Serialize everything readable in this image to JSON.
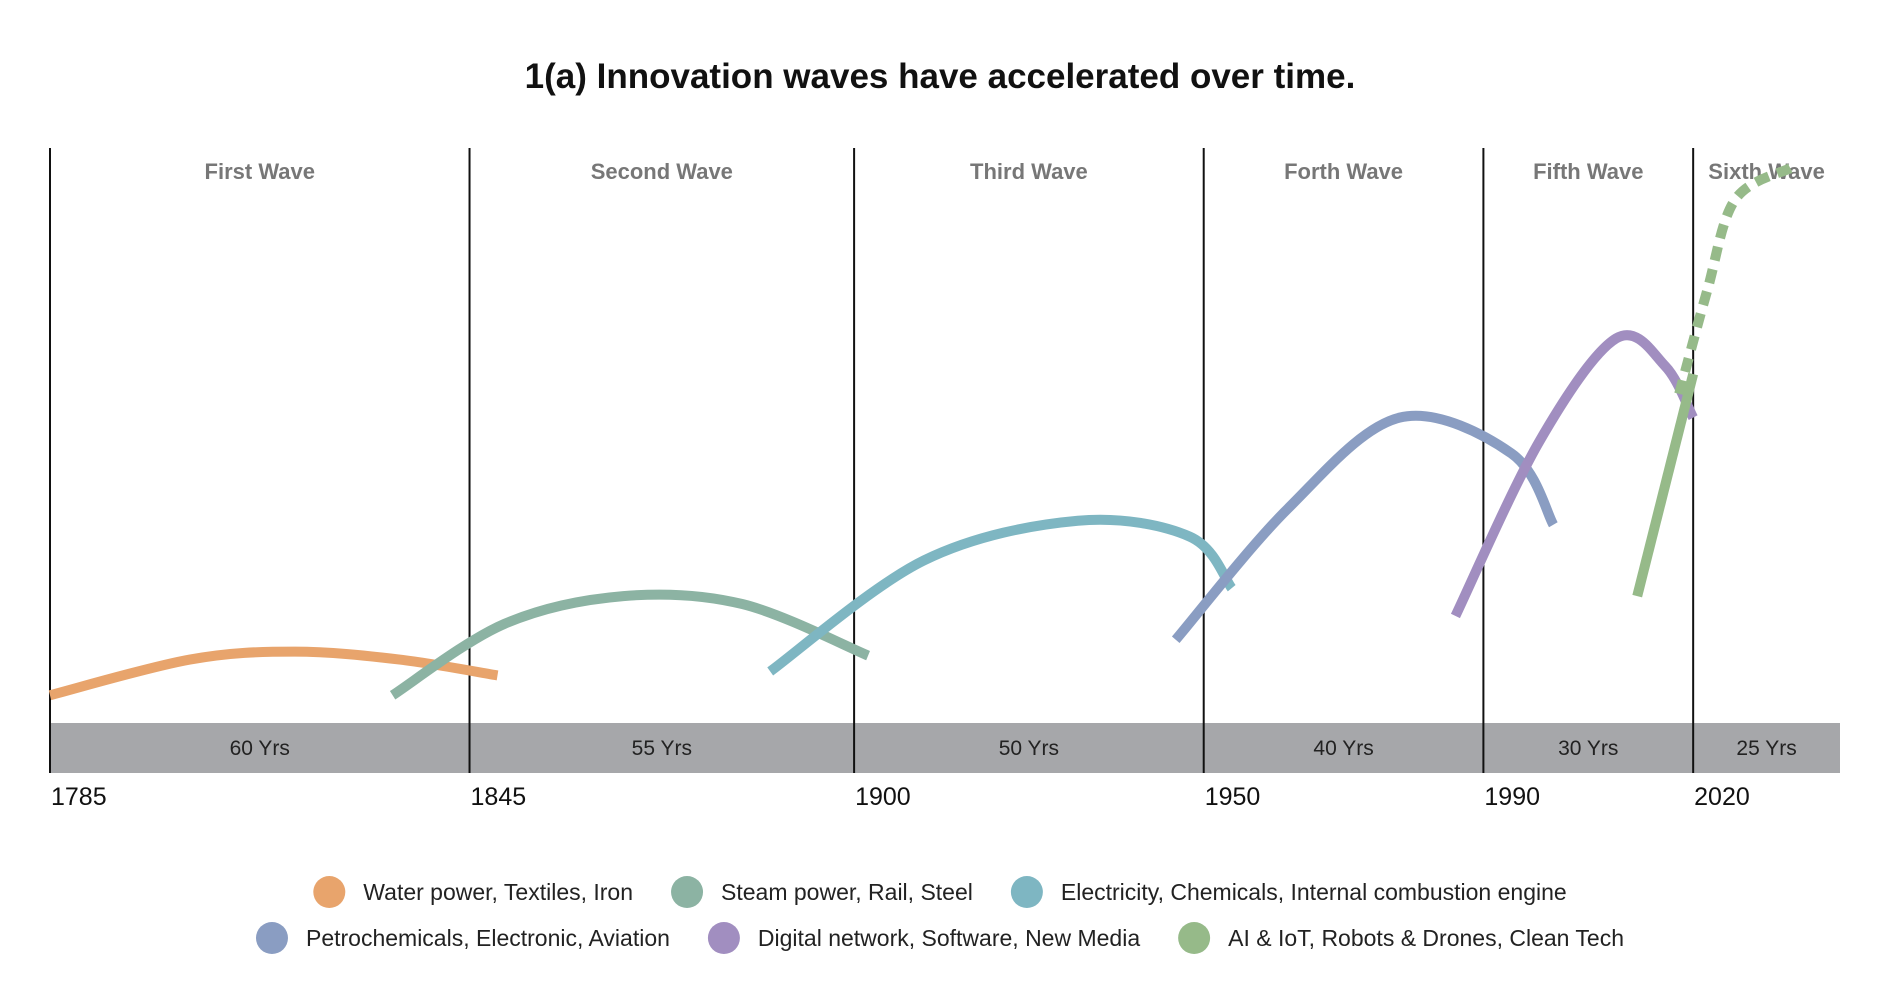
{
  "chart_data": {
    "type": "line",
    "title": "1(a) Innovation waves have accelerated over time.",
    "years": [
      "1785",
      "1845",
      "1900",
      "1950",
      "1990",
      "2020"
    ],
    "waves": [
      {
        "label": "First Wave",
        "duration": "60 Yrs"
      },
      {
        "label": "Second Wave",
        "duration": "55 Yrs"
      },
      {
        "label": "Third Wave",
        "duration": "50 Yrs"
      },
      {
        "label": "Forth Wave",
        "duration": "40 Yrs"
      },
      {
        "label": "Fifth Wave",
        "duration": "30 Yrs"
      },
      {
        "label": "Sixth Wave",
        "duration": "25 Yrs"
      }
    ],
    "series": [
      {
        "name": "Water power, Textiles, Iron",
        "color": "#E8A46C",
        "dashed": false,
        "points": [
          [
            1785,
            0.07
          ],
          [
            1805,
            0.16
          ],
          [
            1820,
            0.18
          ],
          [
            1835,
            0.16
          ],
          [
            1849,
            0.12
          ]
        ]
      },
      {
        "name": "Steam power, Rail, Steel",
        "color": "#8CB3A3",
        "dashed": false,
        "points": [
          [
            1834,
            0.07
          ],
          [
            1850,
            0.25
          ],
          [
            1867,
            0.32
          ],
          [
            1884,
            0.3
          ],
          [
            1902,
            0.17
          ]
        ]
      },
      {
        "name": "Electricity, Chemicals, Internal combustion engine",
        "color": "#7EB6C2",
        "dashed": false,
        "points": [
          [
            1888,
            0.13
          ],
          [
            1910,
            0.41
          ],
          [
            1932,
            0.51
          ],
          [
            1948,
            0.47
          ],
          [
            1954,
            0.34
          ]
        ]
      },
      {
        "name": "Petrochemicals, Electronic, Aviation",
        "color": "#8A9DC2",
        "dashed": false,
        "points": [
          [
            1946,
            0.21
          ],
          [
            1962,
            0.54
          ],
          [
            1978,
            0.77
          ],
          [
            1994,
            0.68
          ],
          [
            2000,
            0.5
          ]
        ]
      },
      {
        "name": "Digital network, Software, New Media",
        "color": "#A18EC0",
        "dashed": false,
        "points": [
          [
            1986,
            0.27
          ],
          [
            1998,
            0.71
          ],
          [
            2009,
            0.97
          ],
          [
            2016,
            0.9
          ],
          [
            2020,
            0.77
          ]
        ]
      },
      {
        "name": "AI & IoT, Robots & Drones, Clean Tech",
        "color": "#96BA89",
        "dashed": false,
        "points": [
          [
            2012,
            0.32
          ],
          [
            2020,
            0.88
          ]
        ]
      },
      {
        "name": "AI & IoT, Robots & Drones, Clean Tech (projected)",
        "color": "#96BA89",
        "dashed": true,
        "points": [
          [
            2018,
            0.83
          ],
          [
            2022,
            1.09
          ],
          [
            2026,
            1.32
          ],
          [
            2034,
            1.4
          ]
        ]
      }
    ],
    "legend": [
      [
        "Water power, Textiles, Iron",
        "Steam power, Rail, Steel",
        "Electricity, Chemicals, Internal combustion engine"
      ],
      [
        "Petrochemicals, Electronic, Aviation",
        "Digital network, Software, New Media",
        "AI & IoT, Robots & Drones, Clean Tech"
      ]
    ],
    "legend_colors": [
      [
        "#E8A46C",
        "#8CB3A3",
        "#7EB6C2"
      ],
      [
        "#8A9DC2",
        "#A18EC0",
        "#96BA89"
      ]
    ],
    "band_color": "#A6A7AA",
    "x_range": [
      1785,
      2041
    ],
    "y_range": [
      0,
      1.45
    ]
  }
}
